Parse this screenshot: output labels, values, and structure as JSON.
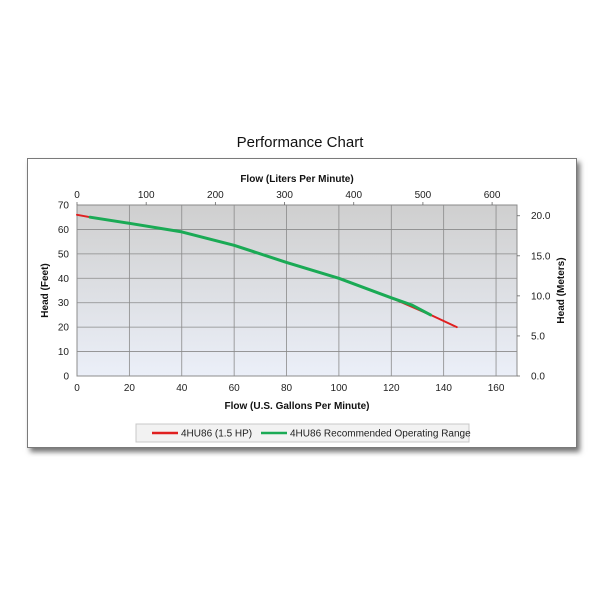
{
  "chart_data": {
    "type": "line",
    "title": "Performance Chart",
    "xlabel": "Flow (U.S. Gallons Per Minute)",
    "x2label": "Flow (Liters Per Minute)",
    "ylabel": "Head (Feet)",
    "y2label": "Head (Meters)",
    "xlim": [
      0,
      168
    ],
    "x2lim": [
      0,
      636
    ],
    "ylim": [
      0,
      70
    ],
    "y2lim": [
      0,
      21.34
    ],
    "x_ticks": [
      "0",
      "20",
      "40",
      "60",
      "80",
      "100",
      "120",
      "140",
      "160"
    ],
    "x2_ticks": [
      "0",
      "100",
      "200",
      "300",
      "400",
      "500",
      "600"
    ],
    "y_ticks": [
      "0",
      "10",
      "20",
      "30",
      "40",
      "50",
      "60",
      "70"
    ],
    "y2_ticks": [
      "0.0",
      "5.0",
      "10.0",
      "15.0",
      "20.0"
    ],
    "grid": true,
    "legend_position": "bottom",
    "series": [
      {
        "name": "4HU86 (1.5 HP)",
        "color": "#e02020",
        "x": [
          0,
          5,
          20,
          40,
          60,
          80,
          100,
          120,
          135,
          145
        ],
        "y": [
          66,
          65,
          62.5,
          59,
          53.5,
          46.5,
          40,
          32,
          25,
          20
        ]
      },
      {
        "name": "4HU86 Recommended Operating Range",
        "color": "#1aaa55",
        "x": [
          5,
          20,
          40,
          60,
          80,
          100,
          120,
          128,
          135
        ],
        "y": [
          65,
          62.5,
          59,
          53.5,
          46.5,
          40,
          32,
          29,
          25
        ]
      }
    ]
  }
}
